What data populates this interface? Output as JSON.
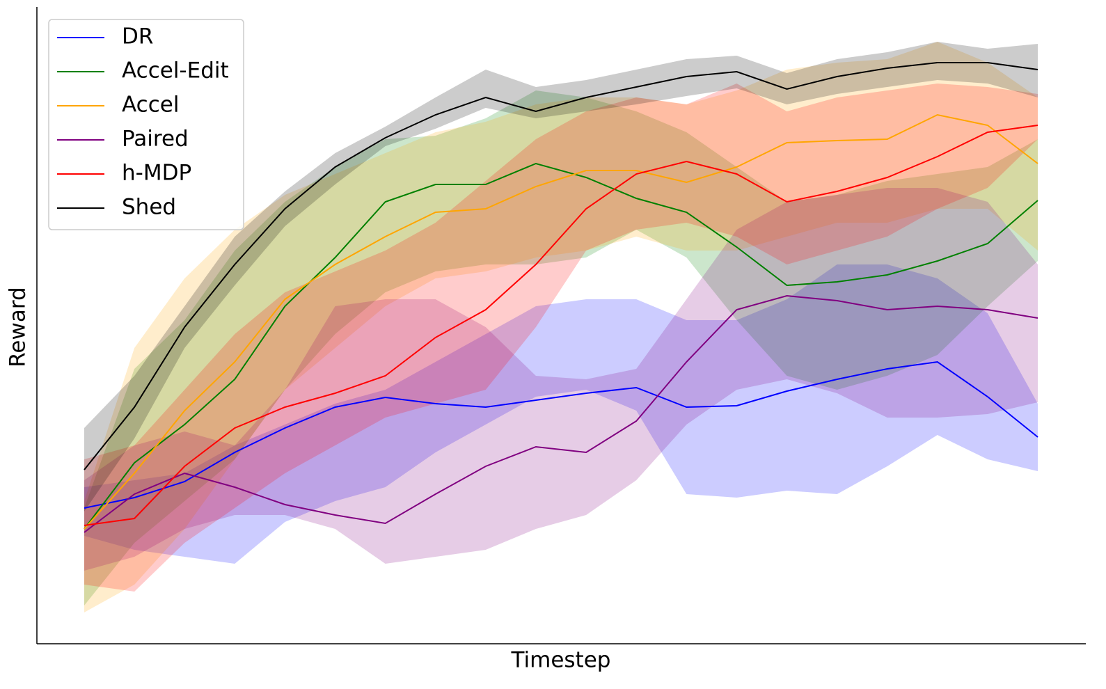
{
  "chart_data": {
    "type": "line",
    "x_label": "Timestep",
    "y_label": "Reward",
    "ylim": [
      0,
      915
    ],
    "legend": "upper left",
    "series": [
      {
        "name": "DR",
        "color": "#0000ff",
        "values": [
          195,
          210,
          233,
          275,
          310,
          340,
          354,
          345,
          340,
          350,
          360,
          368,
          340,
          342,
          363,
          380,
          395,
          405,
          355,
          297
        ],
        "upper": [
          225,
          235,
          245,
          285,
          315,
          345,
          365,
          405,
          445,
          485,
          495,
          495,
          465,
          465,
          495,
          545,
          545,
          525,
          475,
          345
        ],
        "lower": [
          155,
          135,
          125,
          115,
          175,
          205,
          225,
          275,
          315,
          355,
          365,
          335,
          215,
          210,
          220,
          215,
          255,
          300,
          265,
          248
        ]
      },
      {
        "name": "Accel-Edit",
        "color": "#008000",
        "values": [
          165,
          260,
          315,
          380,
          485,
          555,
          635,
          660,
          660,
          690,
          670,
          640,
          620,
          570,
          515,
          520,
          530,
          550,
          575,
          637
        ],
        "upper": [
          195,
          395,
          465,
          565,
          635,
          685,
          725,
          730,
          755,
          795,
          785,
          765,
          735,
          685,
          635,
          645,
          665,
          675,
          685,
          725
        ],
        "lower": [
          55,
          145,
          205,
          265,
          365,
          445,
          505,
          535,
          545,
          545,
          555,
          595,
          555,
          465,
          385,
          365,
          385,
          415,
          485,
          550
        ]
      },
      {
        "name": "Accel",
        "color": "#ffa500",
        "values": [
          165,
          245,
          335,
          405,
          495,
          545,
          585,
          620,
          625,
          657,
          680,
          680,
          663,
          685,
          720,
          723,
          725,
          760,
          745,
          690
        ],
        "upper": [
          205,
          425,
          525,
          595,
          645,
          675,
          705,
          735,
          750,
          775,
          785,
          785,
          775,
          795,
          825,
          835,
          840,
          865,
          835,
          785
        ],
        "lower": [
          45,
          85,
          165,
          265,
          365,
          425,
          485,
          525,
          535,
          555,
          565,
          585,
          565,
          565,
          585,
          605,
          605,
          625,
          625,
          565
        ]
      },
      {
        "name": "Paired",
        "color": "#800080",
        "values": [
          160,
          215,
          245,
          225,
          200,
          185,
          173,
          215,
          255,
          283,
          275,
          320,
          405,
          480,
          500,
          493,
          480,
          485,
          480,
          468
        ],
        "upper": [
          235,
          285,
          305,
          285,
          365,
          485,
          495,
          495,
          455,
          385,
          380,
          395,
          495,
          595,
          635,
          645,
          655,
          655,
          635,
          545
        ],
        "lower": [
          105,
          125,
          165,
          185,
          185,
          165,
          115,
          125,
          135,
          165,
          185,
          235,
          315,
          365,
          380,
          360,
          325,
          325,
          330,
          347
        ]
      },
      {
        "name": "h-MDP",
        "color": "#ff0000",
        "values": [
          170,
          180,
          255,
          310,
          340,
          360,
          385,
          440,
          480,
          545,
          625,
          675,
          693,
          675,
          635,
          650,
          670,
          700,
          735,
          745
        ],
        "upper": [
          265,
          285,
          365,
          445,
          505,
          535,
          565,
          605,
          665,
          725,
          765,
          785,
          775,
          805,
          765,
          785,
          795,
          805,
          800,
          790
        ],
        "lower": [
          85,
          75,
          145,
          195,
          245,
          285,
          325,
          345,
          365,
          455,
          565,
          595,
          605,
          585,
          545,
          565,
          585,
          625,
          655,
          725
        ]
      },
      {
        "name": "Shed",
        "color": "#000000",
        "values": [
          250,
          340,
          455,
          545,
          625,
          685,
          727,
          760,
          785,
          765,
          785,
          800,
          815,
          822,
          797,
          815,
          827,
          835,
          835,
          825
        ],
        "upper": [
          310,
          385,
          485,
          585,
          650,
          705,
          743,
          785,
          825,
          800,
          810,
          825,
          840,
          845,
          820,
          840,
          850,
          865,
          855,
          862
        ],
        "lower": [
          190,
          295,
          425,
          515,
          600,
          660,
          715,
          740,
          770,
          755,
          765,
          775,
          787,
          798,
          775,
          790,
          800,
          810,
          805,
          785
        ]
      }
    ]
  }
}
